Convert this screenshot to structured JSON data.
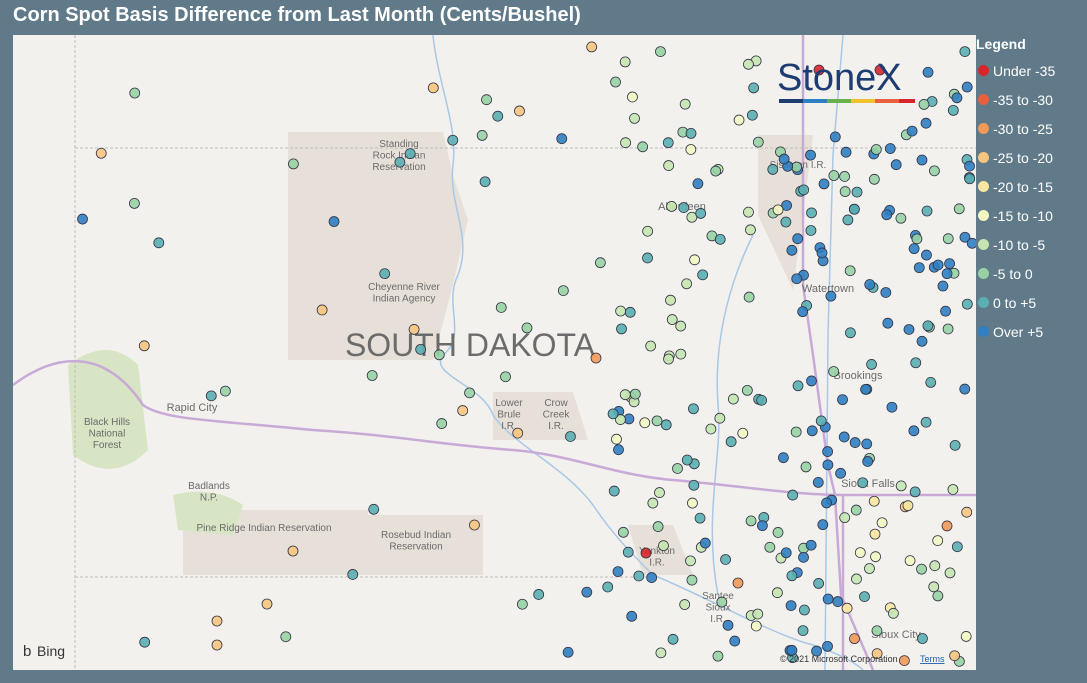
{
  "header": {
    "title": "Corn Spot Basis Difference from Last Month (Cents/Bushel)"
  },
  "logo": "StoneX",
  "legend": {
    "title": "Legend",
    "items": [
      {
        "label": "Under -35",
        "color": "#d7262b"
      },
      {
        "label": "-35 to -30",
        "color": "#e8603c"
      },
      {
        "label": "-30 to -25",
        "color": "#f19a58"
      },
      {
        "label": "-25 to -20",
        "color": "#f6c57e"
      },
      {
        "label": "-20 to -15",
        "color": "#f8e79e"
      },
      {
        "label": "-15 to -10",
        "color": "#f3f7c2"
      },
      {
        "label": "-10 to -5",
        "color": "#c5e5b0"
      },
      {
        "label": "-5 to 0",
        "color": "#98d2a4"
      },
      {
        "label": "0 to +5",
        "color": "#5aafb1"
      },
      {
        "label": "Over +5",
        "color": "#2f7fc2"
      }
    ]
  },
  "map": {
    "labels": [
      {
        "lines": [
          "Standing",
          "Rock Indian",
          "Reservation"
        ]
      },
      {
        "lines": [
          "Sisseton I.R."
        ]
      },
      {
        "lines": [
          "Aberdeen"
        ]
      },
      {
        "lines": [
          "Cheyenne River",
          "Indian Agency"
        ]
      },
      {
        "lines": [
          "SOUTH DAKOTA"
        ]
      },
      {
        "lines": [
          "Watertown"
        ]
      },
      {
        "lines": [
          "Brookings"
        ]
      },
      {
        "lines": [
          "Rapid City"
        ]
      },
      {
        "lines": [
          "Black Hills",
          "National",
          "Forest"
        ]
      },
      {
        "lines": [
          "Lower",
          "Brule",
          "I.R."
        ]
      },
      {
        "lines": [
          "Crow",
          "Creek",
          "I.R."
        ]
      },
      {
        "lines": [
          "Badlands",
          "N.P."
        ]
      },
      {
        "lines": [
          "Pine Ridge Indian Reservation"
        ]
      },
      {
        "lines": [
          "Rosebud Indian",
          "Reservation"
        ]
      },
      {
        "lines": [
          "Yankton",
          "I.R."
        ]
      },
      {
        "lines": [
          "Santee",
          "Sioux",
          "I.R."
        ]
      },
      {
        "lines": [
          "Sioux Falls"
        ]
      },
      {
        "lines": [
          "Sioux City"
        ]
      }
    ]
  },
  "footer": {
    "provider": "Bing",
    "copyright": "© 2021 Microsoft Corporation",
    "terms": "Terms"
  }
}
